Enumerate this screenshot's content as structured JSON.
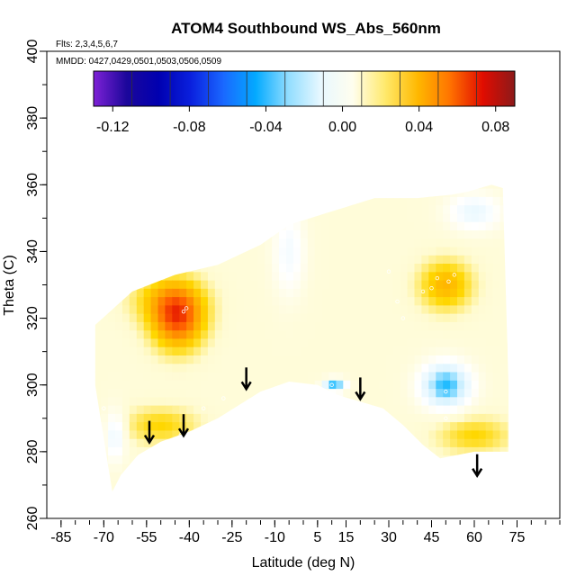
{
  "chart_data": {
    "type": "heatmap",
    "title": "ATOM4 Southbound WS_Abs_560nm",
    "subtitle_flights": "Flts: 2,3,4,5,6,7",
    "subtitle_dates": "MMDD: 0427,0429,0501,0503,0506,0509",
    "xlabel": "Latitude (deg N)",
    "ylabel": "Theta (C)",
    "xlim": [
      -90,
      90
    ],
    "ylim": [
      260,
      400
    ],
    "x_ticks": [
      -85,
      -70,
      -55,
      -40,
      -25,
      -10,
      5,
      15,
      30,
      45,
      60,
      75
    ],
    "y_ticks": [
      260,
      280,
      300,
      320,
      340,
      360,
      380,
      400
    ],
    "colorbar": {
      "range": [
        -0.13,
        0.09
      ],
      "tick_values": [
        -0.12,
        -0.08,
        -0.04,
        0.0,
        0.04,
        0.08
      ],
      "tick_labels": [
        "-0.12",
        "-0.08",
        "-0.04",
        "0.00",
        "0.04",
        "0.08"
      ],
      "colors": [
        "#7e21d6",
        "#00008b",
        "#0000cd",
        "#1e5eff",
        "#00b2ff",
        "#d3f1ff",
        "#ffffff",
        "#fffbd0",
        "#ffd700",
        "#ffa500",
        "#ff6000",
        "#dd0000",
        "#8b1a1a"
      ]
    },
    "arrows": [
      {
        "lat": -54,
        "theta": 286
      },
      {
        "lat": -42,
        "theta": 288
      },
      {
        "lat": -20,
        "theta": 302
      },
      {
        "lat": 20,
        "theta": 299
      },
      {
        "lat": 61,
        "theta": 276
      }
    ],
    "field_outline": [
      [
        -73,
        318
      ],
      [
        -60,
        328
      ],
      [
        -45,
        333
      ],
      [
        -30,
        336
      ],
      [
        -15,
        342
      ],
      [
        -5,
        348
      ],
      [
        10,
        352
      ],
      [
        25,
        356
      ],
      [
        40,
        356
      ],
      [
        52,
        357
      ],
      [
        58,
        358
      ],
      [
        66,
        360
      ],
      [
        70,
        359
      ],
      [
        72,
        300
      ],
      [
        72,
        280
      ],
      [
        60,
        280
      ],
      [
        48,
        278
      ],
      [
        42,
        282
      ],
      [
        35,
        288
      ],
      [
        28,
        293
      ],
      [
        20,
        295
      ],
      [
        12,
        297
      ],
      [
        5,
        300
      ],
      [
        -5,
        301
      ],
      [
        -15,
        298
      ],
      [
        -30,
        290
      ],
      [
        -40,
        286
      ],
      [
        -50,
        283
      ],
      [
        -58,
        279
      ],
      [
        -64,
        273
      ],
      [
        -67,
        268
      ],
      [
        -73,
        300
      ]
    ],
    "features": [
      {
        "lat": -44,
        "theta": 320,
        "value": 0.06,
        "radius_lat": 10,
        "radius_theta": 10
      },
      {
        "lat": -48,
        "theta": 326,
        "value": 0.03,
        "radius_lat": 14,
        "radius_theta": 8
      },
      {
        "lat": -50,
        "theta": 288,
        "value": 0.03,
        "radius_lat": 14,
        "radius_theta": 6
      },
      {
        "lat": 50,
        "theta": 330,
        "value": 0.04,
        "radius_lat": 10,
        "radius_theta": 8
      },
      {
        "lat": 60,
        "theta": 285,
        "value": 0.03,
        "radius_lat": 14,
        "radius_theta": 6
      },
      {
        "lat": 50,
        "theta": 300,
        "value": -0.04,
        "radius_lat": 9,
        "radius_theta": 7
      },
      {
        "lat": 11,
        "theta": 300,
        "value": -0.04,
        "radius_lat": 4,
        "radius_theta": 2
      },
      {
        "lat": -5,
        "theta": 340,
        "value": -0.005,
        "radius_lat": 6,
        "radius_theta": 14
      },
      {
        "lat": 60,
        "theta": 352,
        "value": -0.01,
        "radius_lat": 10,
        "radius_theta": 6
      },
      {
        "lat": -66,
        "theta": 285,
        "value": -0.01,
        "radius_lat": 4,
        "radius_theta": 8
      }
    ],
    "sample_points": [
      [
        -42,
        322
      ],
      [
        -41,
        323
      ],
      [
        -43,
        285
      ],
      [
        -35,
        293
      ],
      [
        -28,
        296
      ],
      [
        30,
        334
      ],
      [
        33,
        325
      ],
      [
        35,
        320
      ],
      [
        42,
        328
      ],
      [
        45,
        329
      ],
      [
        47,
        332
      ],
      [
        51,
        331
      ],
      [
        53,
        333
      ],
      [
        50,
        298
      ],
      [
        50,
        290
      ],
      [
        10,
        300
      ],
      [
        -70,
        293
      ]
    ]
  }
}
